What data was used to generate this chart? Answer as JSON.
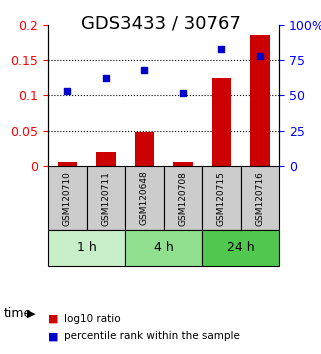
{
  "title": "GDS3433 / 30767",
  "samples": [
    "GSM120710",
    "GSM120711",
    "GSM120648",
    "GSM120708",
    "GSM120715",
    "GSM120716"
  ],
  "log10_ratio": [
    0.005,
    0.02,
    0.048,
    0.005,
    0.125,
    0.185
  ],
  "percentile_rank": [
    53,
    62,
    68,
    52,
    83,
    78
  ],
  "left_ylim": [
    0,
    0.2
  ],
  "right_ylim": [
    0,
    100
  ],
  "left_yticks": [
    0,
    0.05,
    0.1,
    0.15,
    0.2
  ],
  "left_yticklabels": [
    "0",
    "0.05",
    "0.1",
    "0.15",
    "0.2"
  ],
  "right_yticks": [
    0,
    25,
    50,
    75,
    100
  ],
  "right_yticklabels": [
    "0",
    "25",
    "50",
    "75",
    "100%"
  ],
  "groups": [
    {
      "label": "1 h",
      "indices": [
        0,
        1
      ],
      "color": "#c8f0c8"
    },
    {
      "label": "4 h",
      "indices": [
        2,
        3
      ],
      "color": "#90e090"
    },
    {
      "label": "24 h",
      "indices": [
        4,
        5
      ],
      "color": "#50c850"
    }
  ],
  "bar_color": "#cc0000",
  "scatter_color": "#0000cc",
  "bar_width": 0.5,
  "grid_color": "black",
  "dotted_lines": [
    0.05,
    0.1,
    0.15
  ],
  "legend_items": [
    "log10 ratio",
    "percentile rank within the sample"
  ],
  "legend_colors": [
    "#cc0000",
    "#0000cc"
  ],
  "sample_box_color": "#cccccc",
  "title_fontsize": 13,
  "tick_fontsize": 9,
  "label_fontsize": 9
}
